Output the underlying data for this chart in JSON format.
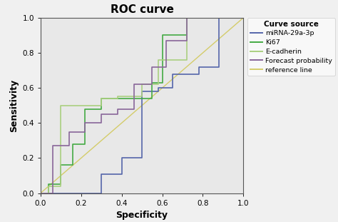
{
  "title": "ROC curve",
  "xlabel": "Specificity",
  "ylabel": "Sensitivity",
  "xlim": [
    0.0,
    1.0
  ],
  "ylim": [
    0.0,
    1.0
  ],
  "xticks": [
    0.0,
    0.2,
    0.4,
    0.6,
    0.8,
    1.0
  ],
  "yticks": [
    0.0,
    0.2,
    0.4,
    0.6,
    0.8,
    1.0
  ],
  "plot_bg": "#e8e8e8",
  "fig_bg": "#f0f0f0",
  "legend_title": "Curve source",
  "curves": {
    "miRNA-29a-3p": {
      "color": "#5566aa",
      "linewidth": 1.2,
      "x": [
        0.0,
        0.3,
        0.3,
        0.4,
        0.4,
        0.5,
        0.5,
        0.58,
        0.58,
        0.65,
        0.65,
        0.78,
        0.78,
        0.88,
        0.88,
        1.0
      ],
      "y": [
        0.0,
        0.0,
        0.11,
        0.11,
        0.2,
        0.2,
        0.58,
        0.58,
        0.6,
        0.6,
        0.68,
        0.68,
        0.72,
        0.72,
        1.0,
        1.0
      ]
    },
    "Ki67": {
      "color": "#44aa44",
      "linewidth": 1.2,
      "x": [
        0.0,
        0.04,
        0.04,
        0.1,
        0.1,
        0.16,
        0.16,
        0.22,
        0.22,
        0.3,
        0.3,
        0.55,
        0.55,
        0.6,
        0.6,
        0.72,
        0.72,
        1.0
      ],
      "y": [
        0.0,
        0.0,
        0.05,
        0.05,
        0.16,
        0.16,
        0.28,
        0.28,
        0.48,
        0.48,
        0.54,
        0.54,
        0.63,
        0.63,
        0.9,
        0.9,
        1.0,
        1.0
      ]
    },
    "E-cadherin": {
      "color": "#aacf80",
      "linewidth": 1.2,
      "x": [
        0.0,
        0.04,
        0.04,
        0.1,
        0.1,
        0.3,
        0.3,
        0.38,
        0.38,
        0.5,
        0.5,
        0.58,
        0.58,
        0.72,
        0.72,
        1.0
      ],
      "y": [
        0.0,
        0.0,
        0.04,
        0.04,
        0.5,
        0.5,
        0.54,
        0.54,
        0.55,
        0.55,
        0.62,
        0.62,
        0.76,
        0.76,
        1.0,
        1.0
      ]
    },
    "Forecast probability": {
      "color": "#886699",
      "linewidth": 1.2,
      "x": [
        0.0,
        0.06,
        0.06,
        0.14,
        0.14,
        0.22,
        0.22,
        0.3,
        0.3,
        0.38,
        0.38,
        0.46,
        0.46,
        0.55,
        0.55,
        0.62,
        0.62,
        0.72,
        0.72,
        1.0
      ],
      "y": [
        0.0,
        0.0,
        0.27,
        0.27,
        0.35,
        0.35,
        0.4,
        0.4,
        0.45,
        0.45,
        0.48,
        0.48,
        0.62,
        0.62,
        0.72,
        0.72,
        0.87,
        0.87,
        1.0,
        1.0
      ]
    },
    "reference line": {
      "color": "#d4cc6a",
      "linewidth": 1.0,
      "x": [
        0.0,
        1.0
      ],
      "y": [
        0.0,
        1.0
      ]
    }
  },
  "curve_order": [
    "miRNA-29a-3p",
    "Ki67",
    "E-cadherin",
    "Forecast probability"
  ],
  "legend_order": [
    "miRNA-29a-3p",
    "Ki67",
    "E-cadherin",
    "Forecast probability",
    "reference line"
  ]
}
